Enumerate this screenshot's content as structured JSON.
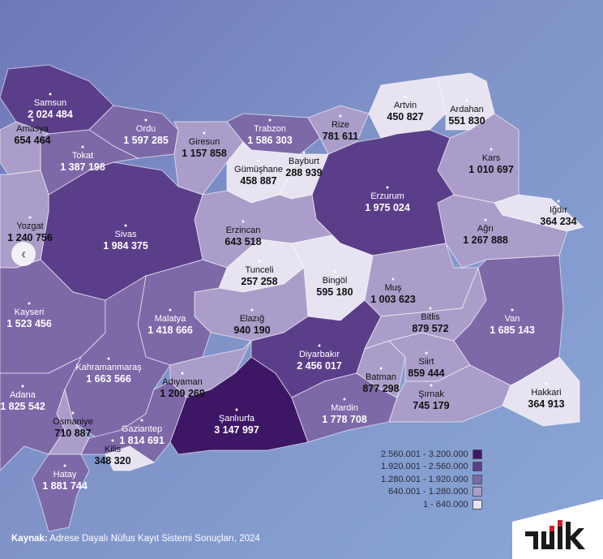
{
  "colors": {
    "bin5": "#3d1766",
    "bin4": "#5b3e89",
    "bin3": "#7d68a8",
    "bin2": "#aa9dc9",
    "bin1": "#e7e3f0"
  },
  "legend": [
    {
      "label": "2.560.001 - 3.200.000",
      "color": "#3d1766"
    },
    {
      "label": "1.920.001 - 2.560.000",
      "color": "#5b3e89"
    },
    {
      "label": "1.280.001 - 1.920.000",
      "color": "#7d68a8"
    },
    {
      "label": "640.001 - 1.280.000",
      "color": "#aa9dc9"
    },
    {
      "label": "1 - 640.000",
      "color": "#e7e3f0"
    }
  ],
  "provinces": [
    {
      "name": "Samsun",
      "value": "2 024 484",
      "num": 2024484
    },
    {
      "name": "Ordu",
      "value": "1 597 285",
      "num": 1597285
    },
    {
      "name": "Giresun",
      "value": "1 157 858",
      "num": 1157858
    },
    {
      "name": "Trabzon",
      "value": "1 586 303",
      "num": 1586303
    },
    {
      "name": "Rize",
      "value": "781 611",
      "num": 781611
    },
    {
      "name": "Artvin",
      "value": "450 827",
      "num": 450827
    },
    {
      "name": "Ardahan",
      "value": "551 830",
      "num": 551830
    },
    {
      "name": "Kars",
      "value": "1 010 697",
      "num": 1010697
    },
    {
      "name": "Iğdır",
      "value": "364 234",
      "num": 364234
    },
    {
      "name": "Ağrı",
      "value": "1 267 888",
      "num": 1267888
    },
    {
      "name": "Erzurum",
      "value": "1 975 024",
      "num": 1975024
    },
    {
      "name": "Gümüşhane",
      "value": "458 887",
      "num": 458887
    },
    {
      "name": "Bayburt",
      "value": "288 939",
      "num": 288939
    },
    {
      "name": "Erzincan",
      "value": "643 518",
      "num": 643518
    },
    {
      "name": "Tunceli",
      "value": "257 258",
      "num": 257258
    },
    {
      "name": "Bingöl",
      "value": "595 180",
      "num": 595180
    },
    {
      "name": "Muş",
      "value": "1 003 623",
      "num": 1003623
    },
    {
      "name": "Elazığ",
      "value": "940 190",
      "num": 940190
    },
    {
      "name": "Malatya",
      "value": "1 418 666",
      "num": 1418666
    },
    {
      "name": "Sivas",
      "value": "1 984 375",
      "num": 1984375
    },
    {
      "name": "Tokat",
      "value": "1 387 198",
      "num": 1387198
    },
    {
      "name": "Amasya",
      "value": "654 464",
      "num": 654464
    },
    {
      "name": "Yozgat",
      "value": "1 240 756",
      "num": 1240756
    },
    {
      "name": "Kayseri",
      "value": "1 523 456",
      "num": 1523456
    },
    {
      "name": "Kahramanmaraş",
      "value": "1 663 566",
      "num": 1663566
    },
    {
      "name": "Adana",
      "value": "1 825 542",
      "num": 1825542
    },
    {
      "name": "Osmaniye",
      "value": "710 887",
      "num": 710887
    },
    {
      "name": "Hatay",
      "value": "1 881 744",
      "num": 1881744
    },
    {
      "name": "Gaziantep",
      "value": "1 814 691",
      "num": 1814691
    },
    {
      "name": "Kilis",
      "value": "348 320",
      "num": 348320
    },
    {
      "name": "Adıyaman",
      "value": "1 209 269",
      "num": 1209269
    },
    {
      "name": "Şanlıurfa",
      "value": "3 147 997",
      "num": 3147997
    },
    {
      "name": "Diyarbakır",
      "value": "2 456 017",
      "num": 2456017
    },
    {
      "name": "Mardin",
      "value": "1 778 708",
      "num": 1778708
    },
    {
      "name": "Batman",
      "value": "877 298",
      "num": 877298
    },
    {
      "name": "Siirt",
      "value": "859 444",
      "num": 859444
    },
    {
      "name": "Bitlis",
      "value": "879 572",
      "num": 879572
    },
    {
      "name": "Şırnak",
      "value": "745 179",
      "num": 745179
    },
    {
      "name": "Van",
      "value": "1 685 143",
      "num": 1685143
    },
    {
      "name": "Hakkari",
      "value": "364 913",
      "num": 364913
    }
  ],
  "source": {
    "prefix": "Kaynak:",
    "text": " Adrese Dayalı Nüfus Kayıt Sistemi Sonuçları, 2024"
  },
  "logo_text": "TÜİK",
  "nav": {
    "icon": "chevron-left-icon"
  }
}
